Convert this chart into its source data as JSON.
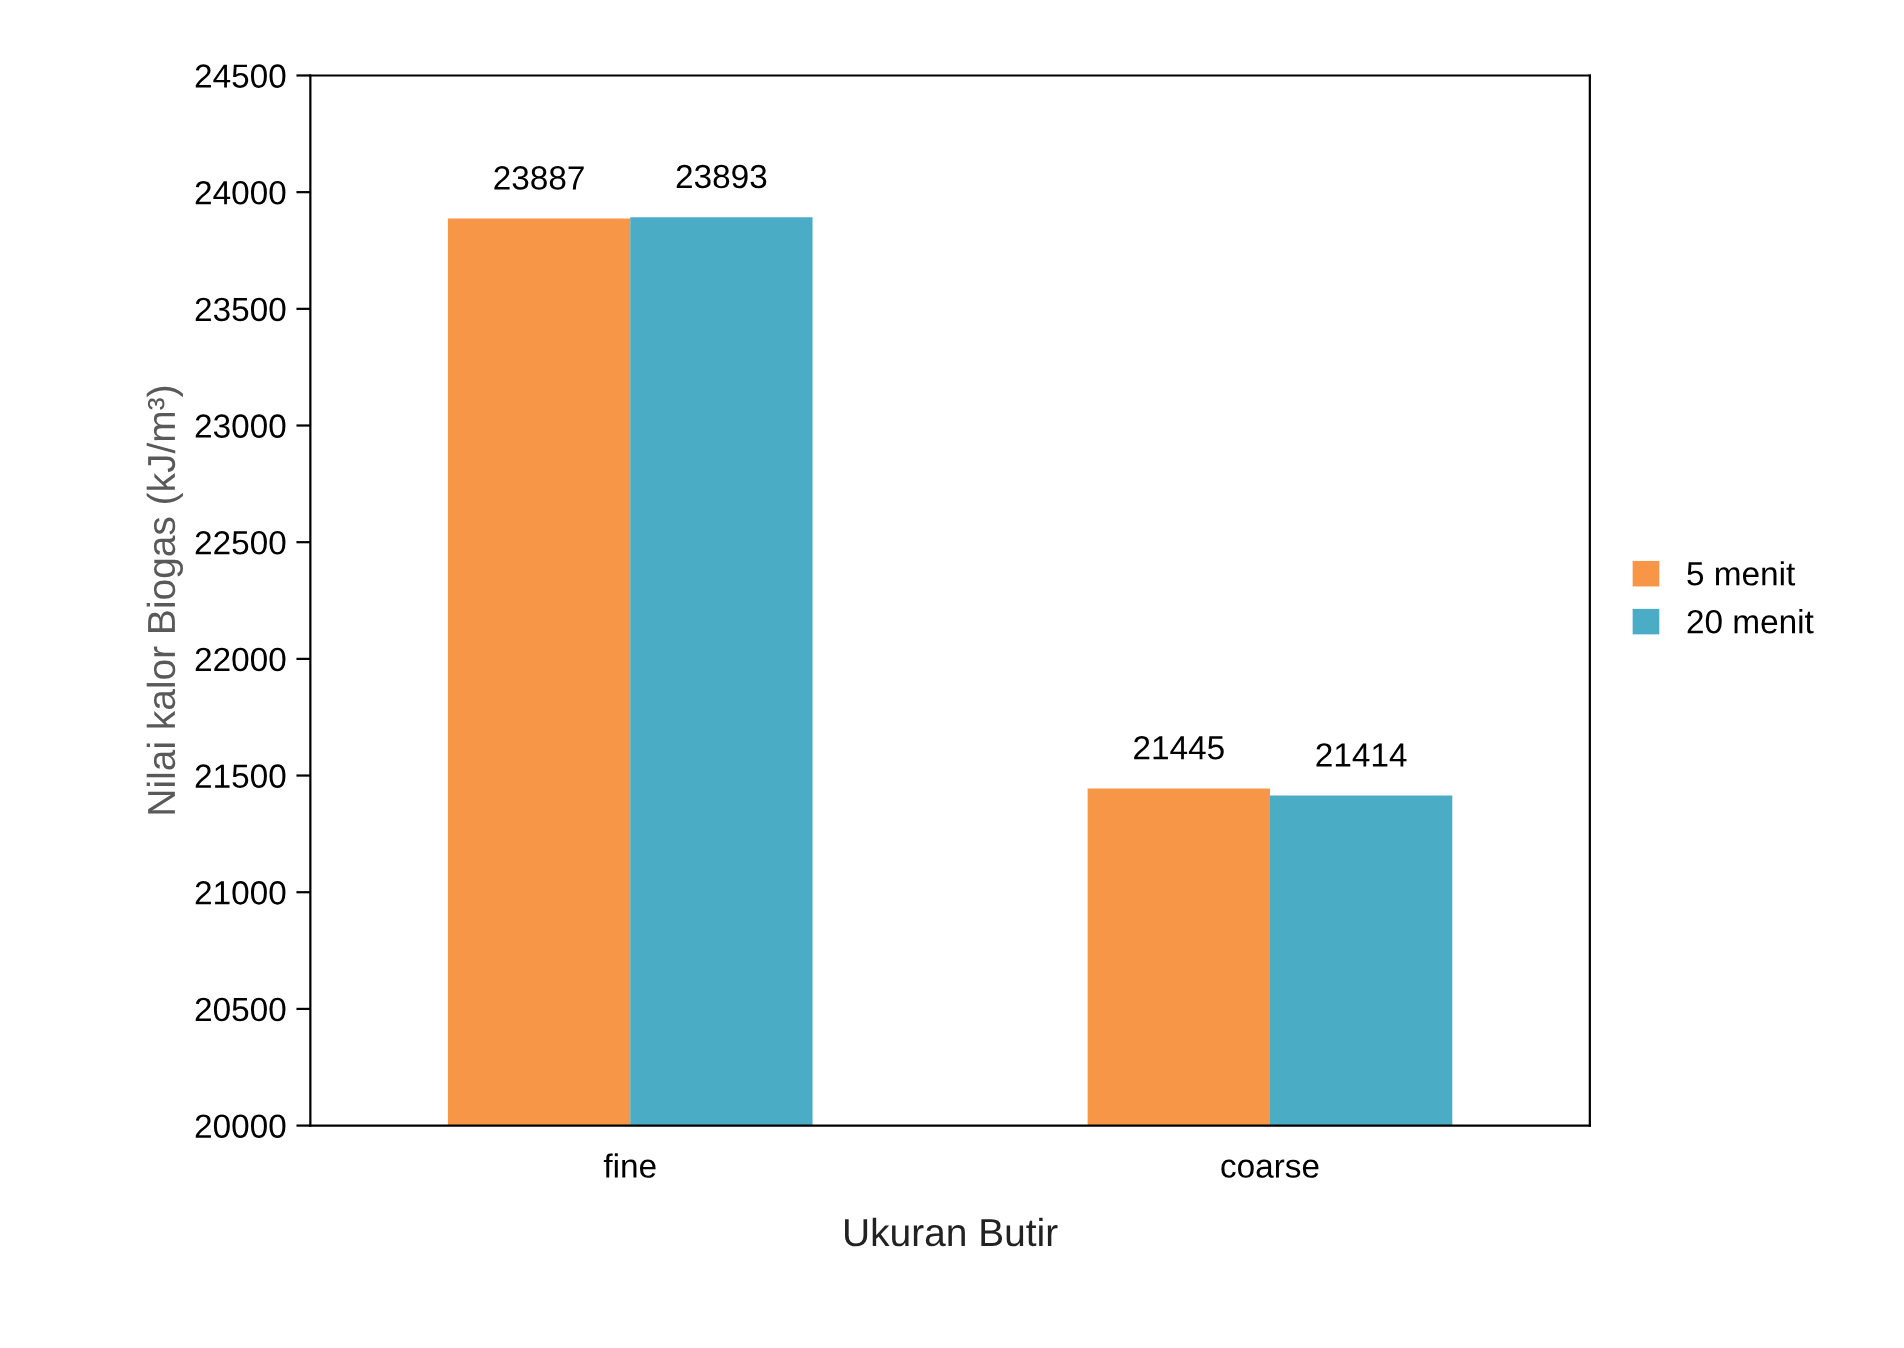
{
  "chart_data": {
    "type": "bar",
    "xlabel": "Ukuran Butir",
    "ylabel": "Nilai kalor Biogas (kJ/m³)",
    "categories": [
      "fine",
      "coarse"
    ],
    "series": [
      {
        "name": "5 menit",
        "color": "#f79646",
        "values": [
          23887,
          21445
        ]
      },
      {
        "name": "20 menit",
        "color": "#4bacc6",
        "values": [
          23893,
          21414
        ]
      }
    ],
    "ylim": [
      20000,
      24500
    ],
    "yticks": [
      20000,
      20500,
      21000,
      21500,
      22000,
      22500,
      23000,
      23500,
      24000,
      24500
    ],
    "data_labels": true,
    "legend": "right",
    "grid": false
  }
}
